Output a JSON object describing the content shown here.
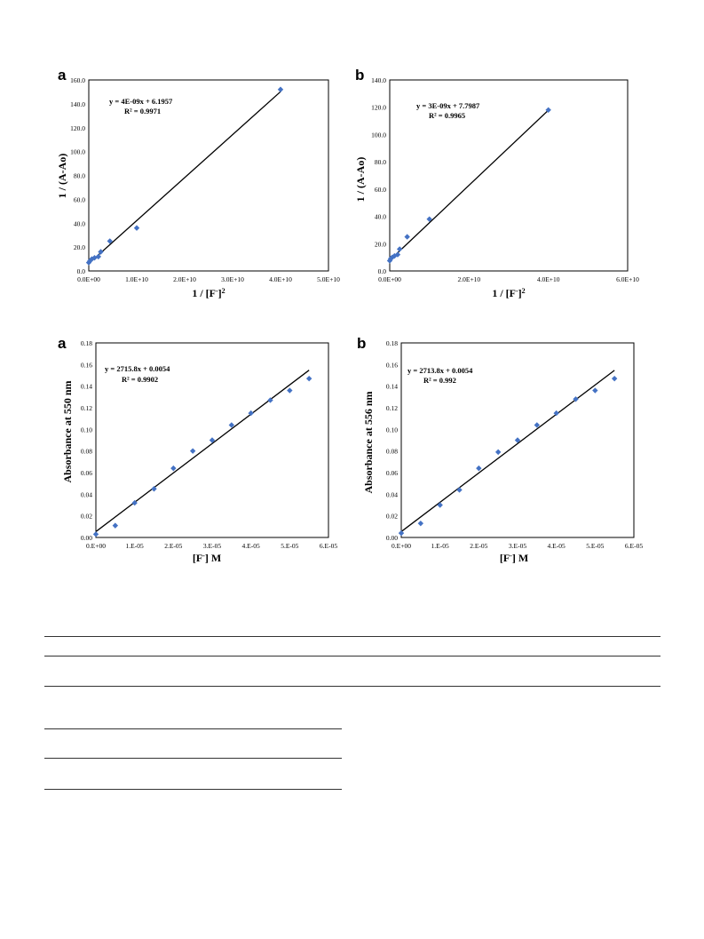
{
  "chart_data": [
    {
      "panel_letter": "a",
      "type": "scatter",
      "marker_color": "#4472C4",
      "line_color": "#000000",
      "x_ticks": [
        "0.0E+00",
        "1.0E+10",
        "2.0E+10",
        "3.0E+10",
        "4.0E+10",
        "5.0E+10"
      ],
      "y_ticks": [
        "0.0",
        "20.0",
        "40.0",
        "60.0",
        "80.0",
        "100.0",
        "120.0",
        "140.0",
        "160.0"
      ],
      "xlim": [
        0,
        50000000000.0
      ],
      "ylim": [
        0,
        160
      ],
      "ylabel": "1 / (A-Ao)",
      "xlabel": {
        "main": "1 / [F",
        "sup1": "-",
        "close": "]",
        "sup2": "2"
      },
      "equation": "y = 4E-09x + 6.1957",
      "r2": "R² = 0.9971",
      "fit": {
        "slope": 3.6e-09,
        "intercept": 6.1957,
        "x_range": [
          0,
          40000000000.0
        ]
      },
      "points": [
        [
          0,
          7
        ],
        [
          250000000.0,
          8.5
        ],
        [
          640000000.0,
          10
        ],
        [
          1200000000.0,
          11
        ],
        [
          2000000000.0,
          12
        ],
        [
          2500000000.0,
          16
        ],
        [
          4400000000.0,
          25
        ],
        [
          10000000000.0,
          36
        ],
        [
          40000000000.0,
          152
        ]
      ],
      "grid": false,
      "legend": "none"
    },
    {
      "panel_letter": "b",
      "type": "scatter",
      "marker_color": "#4472C4",
      "line_color": "#000000",
      "x_ticks": [
        "0.0E+00",
        "2.0E+10",
        "4.0E+10",
        "6.0E+10"
      ],
      "y_ticks": [
        "0.0",
        "20.0",
        "40.0",
        "60.0",
        "80.0",
        "100.0",
        "120.0",
        "140.0"
      ],
      "xlim": [
        0,
        60000000000.0
      ],
      "ylim": [
        0,
        140
      ],
      "ylabel": "1 / (A-Ao)",
      "xlabel": {
        "main": "1 / [F",
        "sup1": "-",
        "close": "]",
        "sup2": "2"
      },
      "equation": "y = 3E-09x + 7.7987",
      "r2": "R² = 0.9965",
      "fit": {
        "slope": 2.75e-09,
        "intercept": 7.7987,
        "x_range": [
          0,
          40000000000.0
        ]
      },
      "points": [
        [
          0,
          7.5
        ],
        [
          250000000.0,
          9
        ],
        [
          640000000.0,
          10
        ],
        [
          1200000000.0,
          11
        ],
        [
          2000000000.0,
          12
        ],
        [
          2500000000.0,
          16
        ],
        [
          4400000000.0,
          25
        ],
        [
          10000000000.0,
          38
        ],
        [
          40000000000.0,
          118
        ]
      ],
      "grid": false,
      "legend": "none"
    },
    {
      "panel_letter": "a",
      "type": "scatter",
      "marker_color": "#4472C4",
      "line_color": "#000000",
      "x_ticks": [
        "0.E+00",
        "1.E-05",
        "2.E-05",
        "3.E-05",
        "4.E-05",
        "5.E-05",
        "6.E-05"
      ],
      "y_ticks": [
        "0.00",
        "0.02",
        "0.04",
        "0.06",
        "0.08",
        "0.10",
        "0.12",
        "0.14",
        "0.16",
        "0.18"
      ],
      "xlim": [
        0,
        6e-05
      ],
      "ylim": [
        0,
        0.18
      ],
      "ylabel": "Absorbance  at 550 nm",
      "xlabel": {
        "main": "[F",
        "sup1": "-",
        "close": "] M",
        "sup2": ""
      },
      "equation": "y = 2715.8x + 0.0054",
      "r2": "R² = 0.9902",
      "fit": {
        "slope": 2715.8,
        "intercept": 0.0054,
        "x_range": [
          0,
          5.5e-05
        ]
      },
      "points": [
        [
          0,
          0.003
        ],
        [
          5e-06,
          0.011
        ],
        [
          1e-05,
          0.032
        ],
        [
          1.5e-05,
          0.045
        ],
        [
          2e-05,
          0.064
        ],
        [
          2.5e-05,
          0.08
        ],
        [
          3e-05,
          0.09
        ],
        [
          3.5e-05,
          0.104
        ],
        [
          4e-05,
          0.115
        ],
        [
          4.5e-05,
          0.127
        ],
        [
          5e-05,
          0.136
        ],
        [
          5.5e-05,
          0.147
        ]
      ],
      "grid": false,
      "legend": "none"
    },
    {
      "panel_letter": "b",
      "type": "scatter",
      "marker_color": "#4472C4",
      "line_color": "#000000",
      "x_ticks": [
        "0.E+00",
        "1.E-05",
        "2.E-05",
        "3.E-05",
        "4.E-05",
        "5.E-05",
        "6.E-05"
      ],
      "y_ticks": [
        "0.00",
        "0.02",
        "0.04",
        "0.06",
        "0.08",
        "0.10",
        "0.12",
        "0.14",
        "0.16",
        "0.18"
      ],
      "xlim": [
        0,
        6e-05
      ],
      "ylim": [
        0,
        0.18
      ],
      "ylabel": "Absorbance  at 556 nm",
      "xlabel": {
        "main": "[F",
        "sup1": "-",
        "close": "] M",
        "sup2": ""
      },
      "equation": "y = 2713.8x + 0.0054",
      "r2": "R² = 0.992",
      "fit": {
        "slope": 2713.8,
        "intercept": 0.0054,
        "x_range": [
          0,
          5.5e-05
        ]
      },
      "points": [
        [
          0,
          0.004
        ],
        [
          5e-06,
          0.013
        ],
        [
          1e-05,
          0.03
        ],
        [
          1.5e-05,
          0.044
        ],
        [
          2e-05,
          0.064
        ],
        [
          2.5e-05,
          0.079
        ],
        [
          3e-05,
          0.09
        ],
        [
          3.5e-05,
          0.104
        ],
        [
          4e-05,
          0.115
        ],
        [
          4.5e-05,
          0.128
        ],
        [
          5e-05,
          0.136
        ],
        [
          5.5e-05,
          0.147
        ]
      ],
      "grid": false,
      "legend": "none"
    }
  ]
}
